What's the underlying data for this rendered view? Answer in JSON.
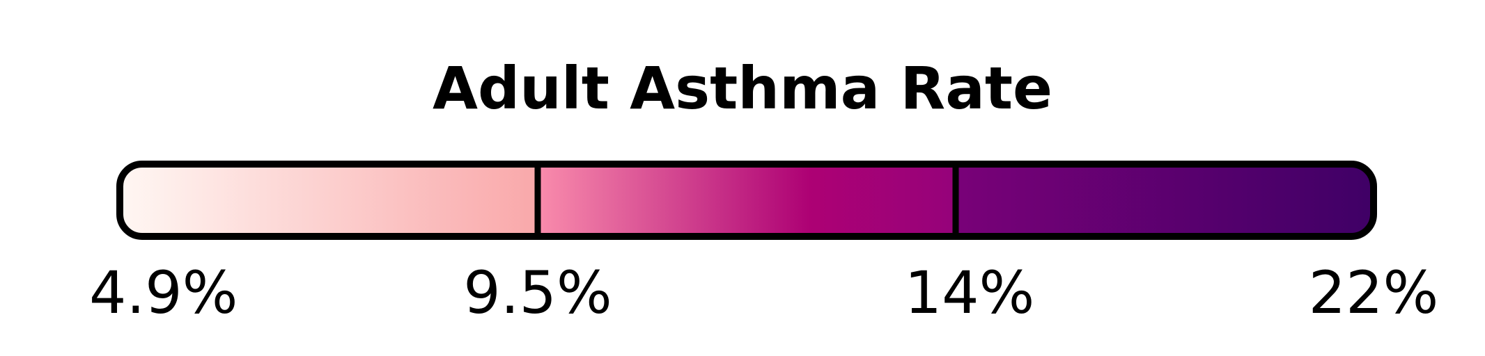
{
  "chart_data": {
    "type": "color-legend",
    "title": "Adult Asthma Rate",
    "unit": "%",
    "bins": [
      {
        "from": 4.9,
        "to": 9.5,
        "color_start": "#fff7f3",
        "color_end": "#f9a8aa"
      },
      {
        "from": 9.5,
        "to": 14,
        "color_start": "#f98cac",
        "color_mid": "#ad0174",
        "color_end": "#95027a"
      },
      {
        "from": 14,
        "to": 22,
        "color_start": "#790178",
        "color_end": "#3f0066"
      }
    ],
    "ticks": [
      {
        "value": 4.9,
        "label": "4.9%"
      },
      {
        "value": 9.5,
        "label": "9.5%"
      },
      {
        "value": 14,
        "label": "14%"
      },
      {
        "value": 22,
        "label": "22%"
      }
    ],
    "outline_color": "#000000"
  }
}
